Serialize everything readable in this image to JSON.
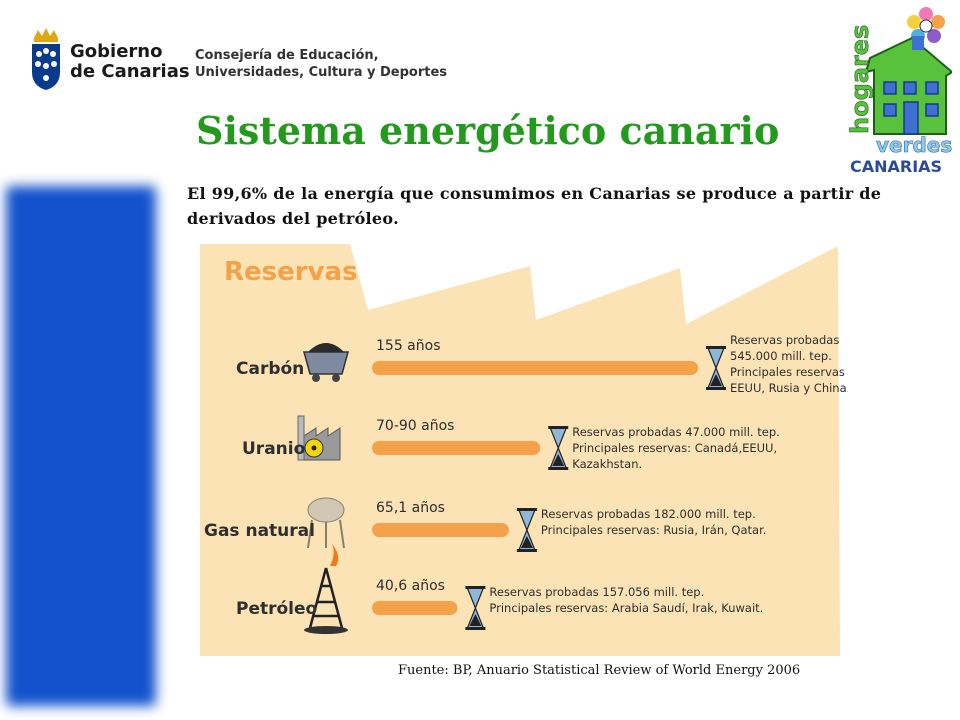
{
  "header": {
    "gobierno_line1": "Gobierno",
    "gobierno_line2": "de Canarias",
    "consejeria_line1": "Consejería de Educación,",
    "consejeria_line2": "Universidades, Cultura y Deportes"
  },
  "title": "Sistema energético canario",
  "hogares_logo": {
    "word1": "hogares",
    "word2": "verdes",
    "word3": "CANARIAS"
  },
  "intro_text": "El 99,6% de la energía que consumimos en Canarias se produce a partir de derivados del petróleo.",
  "source_text": "Fuente: BP, Anuario Statistical Review of World Energy 2006",
  "colors": {
    "title_green": "#239a1e",
    "side_bar_blue": "#1352cc",
    "infographic_bg": "#fbe3b5",
    "bar_orange": "#f5a14a"
  },
  "chart_data": {
    "type": "bar",
    "title": "Reservas",
    "orientation": "horizontal",
    "categories": [
      "Carbón",
      "Uranio",
      "Gas natural",
      "Petróleo"
    ],
    "values": [
      155,
      80,
      65.1,
      40.6
    ],
    "value_labels": [
      "155 años",
      "70-90 años",
      "65,1 años",
      "40,6 años"
    ],
    "icons": [
      "coal-cart-icon",
      "nuclear-plant-icon",
      "gas-tank-icon",
      "oil-derrick-icon"
    ],
    "notes": [
      [
        "Reservas probadas",
        "545.000 mill. tep.",
        "Principales reservas",
        "EEUU, Rusia y China."
      ],
      [
        "Reservas probadas 47.000 mill. tep.",
        "Principales reservas: Canadá,EEUU,",
        "Kazakhstan."
      ],
      [
        "Reservas probadas 182.000 mill. tep.",
        "Principales reservas: Rusia, Irán, Qatar."
      ],
      [
        "Reservas probadas 157.056 mill. tep.",
        "Principales reservas: Arabia Saudí, Irak, Kuwait."
      ]
    ]
  }
}
